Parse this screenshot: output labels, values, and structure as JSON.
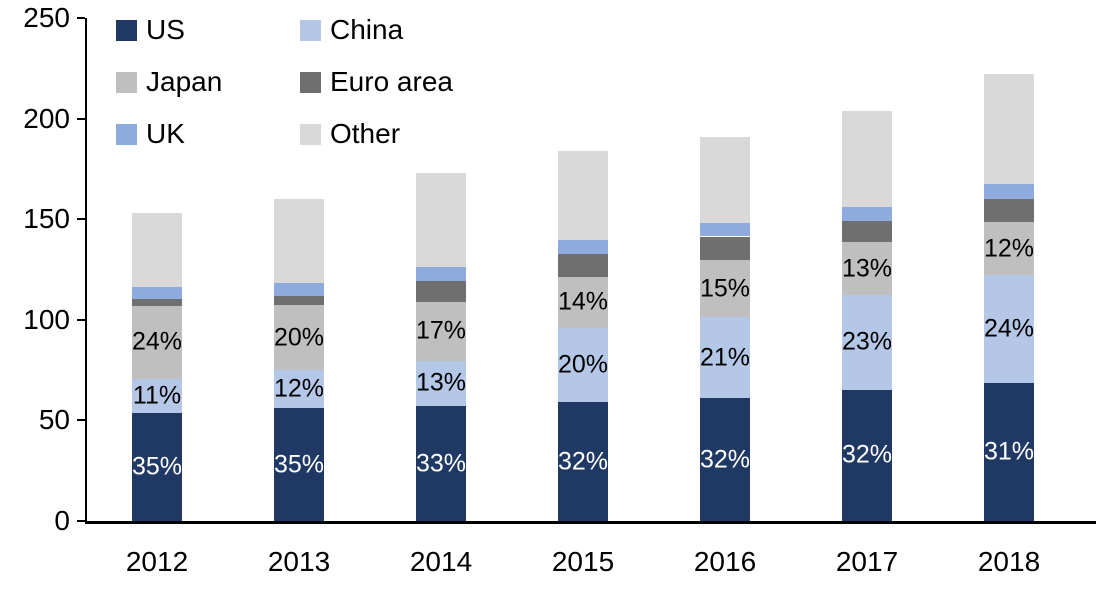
{
  "chart_data": {
    "type": "bar",
    "stacked": true,
    "title": "",
    "xlabel": "",
    "ylabel": "",
    "categories": [
      "2012",
      "2013",
      "2014",
      "2015",
      "2016",
      "2017",
      "2018"
    ],
    "series": [
      {
        "name": "US",
        "color": "#1F3864",
        "label_color": "#FFFFFF",
        "values": [
          53.6,
          56.0,
          57.1,
          58.9,
          61.1,
          65.3,
          68.8
        ],
        "labels": [
          "35%",
          "35%",
          "33%",
          "32%",
          "32%",
          "32%",
          "31%"
        ]
      },
      {
        "name": "China",
        "color": "#B4C7E7",
        "label_color": "#000000",
        "values": [
          16.8,
          19.2,
          22.5,
          36.8,
          40.1,
          46.9,
          53.3
        ],
        "labels": [
          "11%",
          "12%",
          "13%",
          "20%",
          "21%",
          "23%",
          "24%"
        ]
      },
      {
        "name": "Japan",
        "color": "#BFBFBF",
        "label_color": "#000000",
        "values": [
          36.7,
          32.0,
          29.4,
          25.8,
          28.7,
          26.5,
          26.6
        ],
        "labels": [
          "24%",
          "20%",
          "17%",
          "14%",
          "15%",
          "13%",
          "12%"
        ]
      },
      {
        "name": "Euro area",
        "color": "#6F6F6F",
        "label_color": "#000000",
        "values": [
          3.1,
          4.8,
          10.4,
          11.0,
          11.5,
          10.2,
          11.1
        ],
        "labels": null
      },
      {
        "name": "UK",
        "color": "#8FAADC",
        "label_color": "#000000",
        "values": [
          6.1,
          6.4,
          6.9,
          7.4,
          6.7,
          7.1,
          7.8
        ],
        "labels": null
      },
      {
        "name": "Other",
        "color": "#D9D9D9",
        "label_color": "#000000",
        "values": [
          36.7,
          41.6,
          46.7,
          44.1,
          42.9,
          48.0,
          54.4
        ],
        "labels": null
      }
    ],
    "totals": [
      153,
      160,
      173,
      184,
      191,
      204,
      222
    ],
    "ylim": [
      0,
      250
    ],
    "yticks": [
      0,
      50,
      100,
      150,
      200,
      250
    ],
    "grid": false,
    "legend_position": "top-left",
    "legend_columns": 2,
    "axis_color": "#000000",
    "text_color": "#000000",
    "background_color": "#FFFFFF"
  }
}
